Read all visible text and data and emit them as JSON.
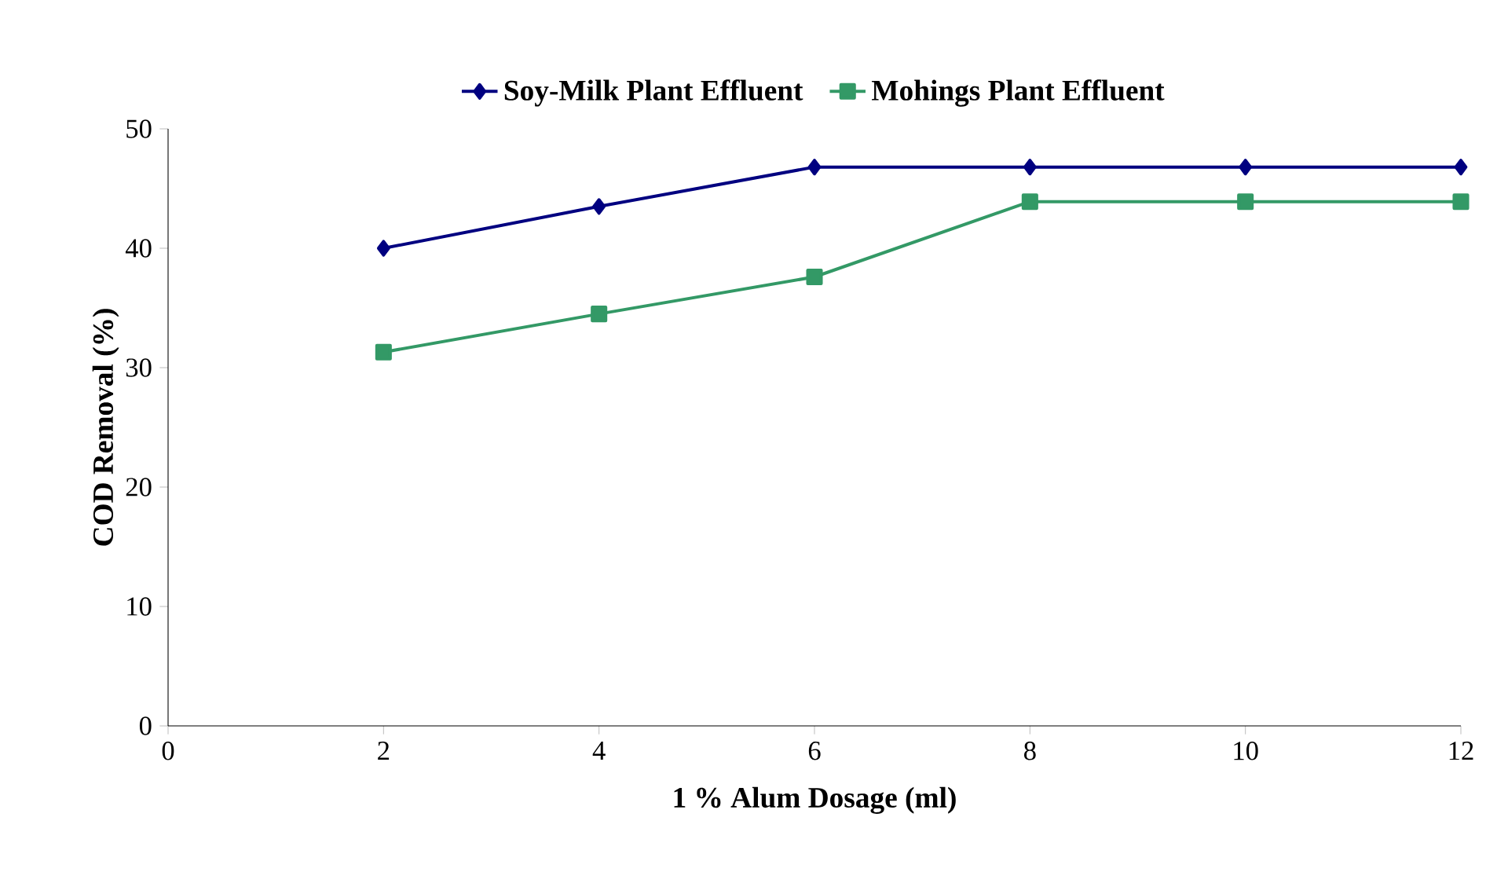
{
  "chart_data": {
    "type": "line",
    "xlabel": "1 % Alum Dosage (ml)",
    "ylabel": "COD Removal (%)",
    "x": [
      2,
      4,
      6,
      8,
      10,
      12
    ],
    "series": [
      {
        "name": "Soy-Milk Plant Effluent",
        "color": "#000080",
        "marker": "diamond",
        "values": [
          40,
          43.5,
          46.8,
          46.8,
          46.8,
          46.8
        ]
      },
      {
        "name": "Mohings Plant Effluent",
        "color": "#339966",
        "marker": "square",
        "values": [
          31.3,
          34.5,
          37.6,
          43.9,
          43.9,
          43.9
        ]
      }
    ],
    "xlim": [
      0,
      12
    ],
    "xticks": [
      0,
      2,
      4,
      6,
      8,
      10,
      12
    ],
    "ylim": [
      0,
      50
    ],
    "yticks": [
      0,
      10,
      20,
      30,
      40,
      50
    ],
    "legend": "top",
    "grid": false,
    "line_style": "solid"
  }
}
